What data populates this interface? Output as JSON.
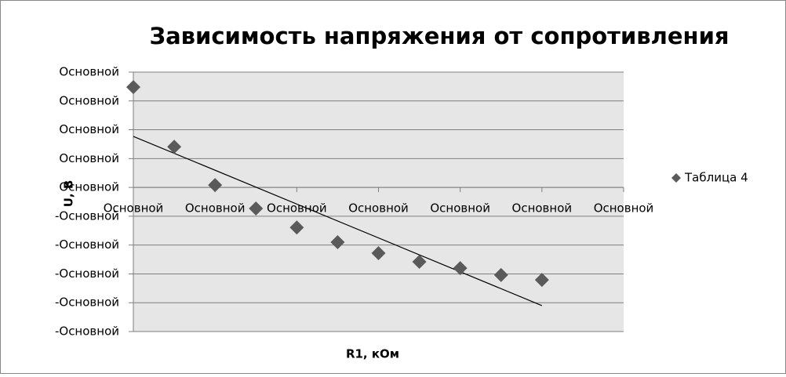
{
  "chart_data": {
    "type": "scatter",
    "title": "Зависимость напряжения от сопротивления",
    "x_label": "R1, кОм",
    "y_label": "U, В",
    "series": [
      {
        "name": "Таблица 4",
        "color": "#5a5a5a",
        "x": [
          0,
          0.5,
          1,
          1.5,
          2,
          2.5,
          3,
          3.5,
          4,
          4.5,
          5
        ],
        "values": [
          3.48,
          1.41,
          0.08,
          -0.73,
          -1.39,
          -1.9,
          -2.28,
          -2.58,
          -2.8,
          -3.04,
          -3.21
        ]
      }
    ],
    "trendline": {
      "color": "#000000",
      "x": [
        0,
        5
      ],
      "values": [
        1.77,
        -4.1
      ]
    },
    "xlim": [
      0,
      6
    ],
    "xticks": [
      {
        "value": 0,
        "label": "Основной"
      },
      {
        "value": 1,
        "label": "Основной"
      },
      {
        "value": 2,
        "label": "Основной"
      },
      {
        "value": 3,
        "label": "Основной"
      },
      {
        "value": 4,
        "label": "Основной"
      },
      {
        "value": 5,
        "label": "Основной"
      },
      {
        "value": 6,
        "label": "Основной"
      }
    ],
    "ylim": [
      -5,
      4
    ],
    "yticks": [
      {
        "value": 4,
        "label": "Основной"
      },
      {
        "value": 3,
        "label": "Основной"
      },
      {
        "value": 2,
        "label": "Основной"
      },
      {
        "value": 1,
        "label": "Основной"
      },
      {
        "value": 0,
        "label": "Основной"
      },
      {
        "value": -1,
        "label": "-Основной"
      },
      {
        "value": -2,
        "label": "-Основной"
      },
      {
        "value": -3,
        "label": "-Основной"
      },
      {
        "value": -4,
        "label": "-Основной"
      },
      {
        "value": -5,
        "label": "-Основной"
      }
    ],
    "grid": true,
    "legend": "right",
    "plot_background": "#e6e6e6"
  }
}
